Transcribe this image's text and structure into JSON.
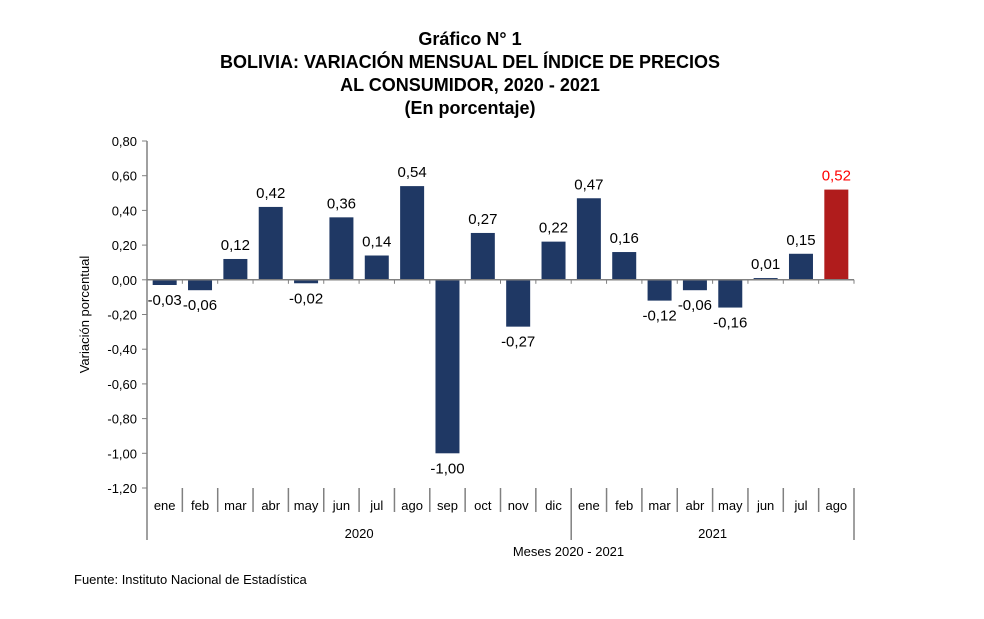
{
  "chart_data": {
    "type": "bar",
    "title_lines": [
      "Gráfico N° 1",
      "BOLIVIA: VARIACIÓN MENSUAL DEL ÍNDICE DE PRECIOS",
      "AL CONSUMIDOR, 2020 - 2021",
      "(En porcentaje)"
    ],
    "xlabel": "Meses 2020 - 2021",
    "ylabel": "Variación porcentual",
    "ylim": [
      -1.2,
      0.8
    ],
    "yticks": [
      "0,80",
      "0,60",
      "0,40",
      "0,20",
      "0,00",
      "-0,20",
      "-0,40",
      "-0,60",
      "-0,80",
      "-1,00",
      "-1,20"
    ],
    "categories": [
      "ene",
      "feb",
      "mar",
      "abr",
      "may",
      "jun",
      "jul",
      "ago",
      "sep",
      "oct",
      "nov",
      "dic",
      "ene",
      "feb",
      "mar",
      "abr",
      "may",
      "jun",
      "jul",
      "ago"
    ],
    "groups": [
      {
        "label": "2020",
        "count": 12
      },
      {
        "label": "2021",
        "count": 8
      }
    ],
    "values": [
      -0.03,
      -0.06,
      0.12,
      0.42,
      -0.02,
      0.36,
      0.14,
      0.54,
      -1.0,
      0.27,
      -0.27,
      0.22,
      0.47,
      0.16,
      -0.12,
      -0.06,
      -0.16,
      0.01,
      0.15,
      0.52
    ],
    "value_labels": [
      "-0,03",
      "-0,06",
      "0,12",
      "0,42",
      "-0,02",
      "0,36",
      "0,14",
      "0,54",
      "-1,00",
      "0,27",
      "-0,27",
      "0,22",
      "0,47",
      "0,16",
      "-0,12",
      "-0,06",
      "-0,16",
      "0,01",
      "0,15",
      "0,52"
    ],
    "colors": {
      "bar": "#1f3864",
      "highlight": "#b01c1c",
      "highlight_label": "#ff0000"
    },
    "highlight_index": 19,
    "grid": false
  },
  "source": "Fuente: Instituto Nacional de Estadística"
}
